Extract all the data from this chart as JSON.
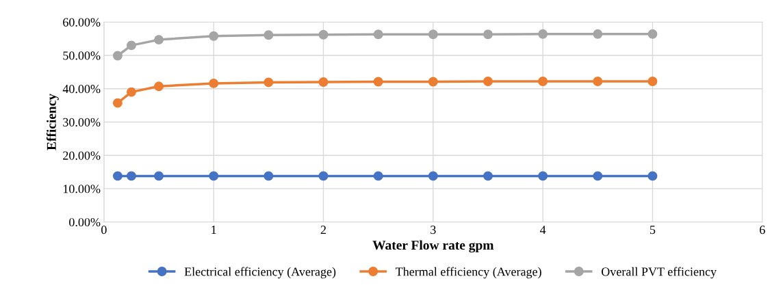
{
  "chart_data": {
    "type": "line",
    "xlabel": "Water Flow rate gpm",
    "ylabel": "Efficiency",
    "x": [
      0.125,
      0.25,
      0.5,
      1,
      1.5,
      2,
      2.5,
      3,
      3.5,
      4,
      4.5,
      5
    ],
    "series": [
      {
        "name": "Electrical efficiency (Average)",
        "color": "#4472c4",
        "values": [
          13.8,
          13.8,
          13.8,
          13.8,
          13.8,
          13.8,
          13.8,
          13.8,
          13.8,
          13.8,
          13.8,
          13.8
        ]
      },
      {
        "name": "Thermal efficiency (Average)",
        "color": "#ed7d31",
        "values": [
          35.7,
          39.0,
          40.7,
          41.6,
          41.9,
          42.0,
          42.1,
          42.1,
          42.2,
          42.2,
          42.2,
          42.2
        ]
      },
      {
        "name": "Overall PVT efficiency",
        "color": "#a5a5a5",
        "values": [
          49.9,
          53.0,
          54.7,
          55.8,
          56.1,
          56.2,
          56.3,
          56.3,
          56.3,
          56.4,
          56.4,
          56.4
        ]
      }
    ],
    "xlim": [
      0,
      6
    ],
    "xticks": [
      0,
      1,
      2,
      3,
      4,
      5,
      6
    ],
    "ylim": [
      0,
      60
    ],
    "yticks": [
      {
        "value": 0,
        "label": "0.00%"
      },
      {
        "value": 10,
        "label": "10.00%"
      },
      {
        "value": 20,
        "label": "20.00%"
      },
      {
        "value": 30,
        "label": "30.00%"
      },
      {
        "value": 40,
        "label": "40.00%"
      },
      {
        "value": 50,
        "label": "50.00%"
      },
      {
        "value": 60,
        "label": "60.00%"
      }
    ],
    "grid": true,
    "legend": "bottom",
    "marker": "circle",
    "line_style": "solid"
  }
}
